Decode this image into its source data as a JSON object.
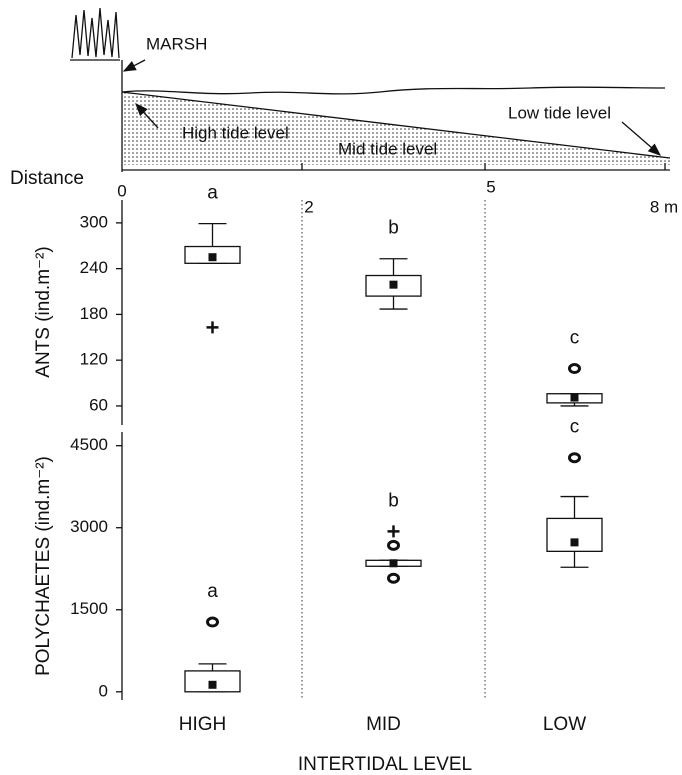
{
  "diagram": {
    "marsh_label": "MARSH",
    "high_tide_label": "High tide level",
    "mid_tide_label": "Mid tide level",
    "low_tide_label": "Low tide level",
    "distance_label": "Distance",
    "distance_ticks": [
      "0",
      "2",
      "5",
      "8 m"
    ]
  },
  "chart_data": [
    {
      "type": "box",
      "y_label": "ANTS (ind.m⁻²)",
      "ylim": [
        35,
        330
      ],
      "yticks": [
        60,
        120,
        180,
        240,
        300
      ],
      "boxes": [
        {
          "whisker_low": 247,
          "q1": 247,
          "mean": 255,
          "q3": 269,
          "whisker_high": 299,
          "outliers": [],
          "extremes": [
            163
          ],
          "letter": "a"
        },
        {
          "whisker_low": 187,
          "q1": 204,
          "mean": 219,
          "q3": 231,
          "whisker_high": 253,
          "outliers": [],
          "extremes": [],
          "letter": "b"
        },
        {
          "whisker_low": 60,
          "q1": 64,
          "mean": 71,
          "q3": 76,
          "whisker_high": 76,
          "outliers": [
            109
          ],
          "extremes": [],
          "letter": "c"
        }
      ]
    },
    {
      "type": "box",
      "y_label": "POLYCHAETES (ind.m⁻²)",
      "ylim": [
        -150,
        4750
      ],
      "yticks": [
        0,
        1500,
        3000,
        4500
      ],
      "categories": [
        "HIGH",
        "MID",
        "LOW"
      ],
      "x_label": "INTERTIDAL LEVEL",
      "boxes": [
        {
          "whisker_low": 0,
          "q1": 0,
          "mean": 128,
          "q3": 382,
          "whisker_high": 510,
          "outliers": [
            1275
          ],
          "extremes": [],
          "letter": "a"
        },
        {
          "whisker_low": 2295,
          "q1": 2295,
          "mean": 2350,
          "q3": 2404,
          "whisker_high": 2404,
          "outliers": [
            2677,
            2077
          ],
          "extremes": [
            2933
          ],
          "letter": "b"
        },
        {
          "whisker_low": 2277,
          "q1": 2568,
          "mean": 2732,
          "q3": 3170,
          "whisker_high": 3570,
          "outliers": [
            4280
          ],
          "extremes": [],
          "letter": "c"
        }
      ]
    }
  ]
}
